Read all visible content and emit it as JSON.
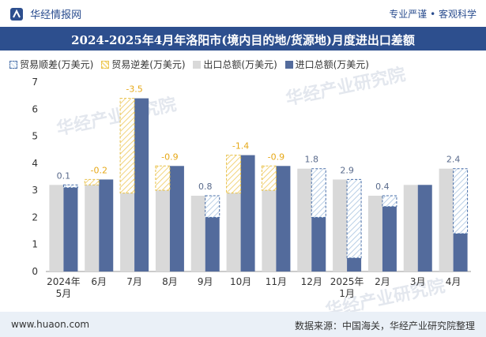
{
  "header": {
    "brand": "华经情报网",
    "slogan": "专业严谨 • 客观科学"
  },
  "watermark": "华经产业研究院",
  "chart_data": {
    "type": "bar",
    "title": "2024-2025年4月年洛阳市(境内目的地/货源地)月度进出口差额",
    "categories": [
      [
        "2024年",
        "5月"
      ],
      "6月",
      "7月",
      "8月",
      "9月",
      "10月",
      "11月",
      "12月",
      [
        "2025年",
        "1月"
      ],
      "2月",
      "3月",
      "4月"
    ],
    "series": [
      {
        "name": "出口总额(万美元)",
        "values": [
          3.2,
          3.2,
          2.9,
          3.0,
          2.8,
          2.9,
          3.0,
          3.8,
          3.4,
          2.8,
          3.2,
          3.8
        ]
      },
      {
        "name": "进口总额(万美元)",
        "values": [
          3.1,
          3.4,
          6.4,
          3.9,
          2.0,
          4.3,
          3.9,
          2.0,
          0.5,
          2.4,
          3.2,
          1.4
        ]
      }
    ],
    "balance": {
      "surplus_name": "贸易顺差(万美元)",
      "deficit_name": "贸易逆差(万美元)",
      "labels": [
        "0.1",
        "-0.2",
        "-3.5",
        "-0.9",
        "0.8",
        "-1.4",
        "-0.9",
        "1.8",
        "2.9",
        "0.4",
        "",
        "2.4"
      ]
    },
    "ylim": [
      0,
      7
    ],
    "yticks": [
      0,
      1,
      2,
      3,
      4,
      5,
      6,
      7
    ],
    "legend_position": "top",
    "colors": {
      "export": "#d9d9d9",
      "import": "#536b9c",
      "surplus": "#4a6fa8",
      "deficit": "#e8c14a",
      "label": "#5a6b8c",
      "deficit_label": "#e6a817"
    }
  },
  "footer": {
    "url": "www.huaon.com",
    "source": "数据来源：中国海关，华经产业研究院整理"
  }
}
